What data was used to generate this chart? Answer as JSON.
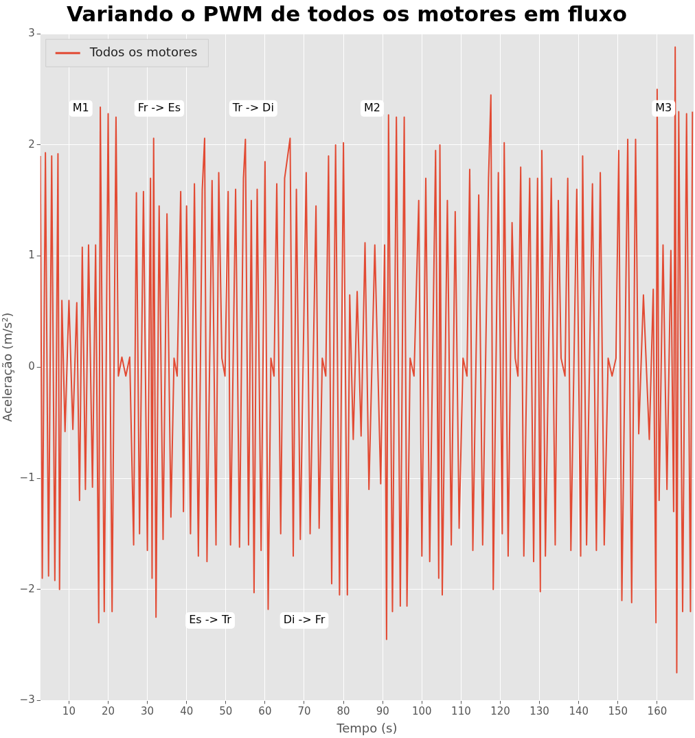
{
  "chart_data": {
    "type": "line",
    "title": "Variando o PWM de todos os motores em fluxo",
    "xlabel": "Tempo (s)",
    "ylabel": "Aceleração (m/s²)",
    "xlim": [
      2.7,
      169.3
    ],
    "ylim": [
      -3,
      3
    ],
    "xticks": [
      10,
      20,
      30,
      40,
      50,
      60,
      70,
      80,
      90,
      100,
      110,
      120,
      130,
      140,
      150,
      160
    ],
    "yticks": [
      {
        "value": -3,
        "label": "−3"
      },
      {
        "value": -2,
        "label": "−2"
      },
      {
        "value": -1,
        "label": "−1"
      },
      0,
      1,
      2,
      3
    ],
    "grid": true,
    "legend": "top left",
    "annotations": [
      "M1",
      "Fr -> Es",
      "Tr -> Di",
      "M2",
      "M3",
      "Es -> Tr",
      "Di -> Fr"
    ],
    "series": [
      {
        "name": "Todos os motores",
        "color": "#e24a33",
        "x": [
          2.7,
          3.2,
          4,
          4.8,
          5.6,
          6.4,
          7.2,
          7.6,
          8.2,
          9,
          10,
          11,
          12,
          12.7,
          13.4,
          14.2,
          15,
          16,
          16.8,
          17.6,
          18,
          19,
          20,
          21,
          22,
          22.6,
          23.5,
          24.5,
          25.5,
          26.5,
          27.2,
          28,
          29,
          30,
          30.8,
          31.2,
          31.6,
          32.2,
          33,
          34,
          35,
          36,
          36.8,
          37.6,
          38.5,
          39.2,
          40,
          41,
          42,
          43,
          44,
          44.6,
          45.2,
          46.5,
          47.5,
          48.2,
          49,
          49.8,
          50.6,
          51.2,
          52.5,
          53.5,
          54.5,
          55,
          55.8,
          56.5,
          57.2,
          58,
          59,
          60,
          60.8,
          61.5,
          62.3,
          63,
          64,
          65,
          66.4,
          67.2,
          68,
          69,
          70.5,
          71.5,
          73,
          73.8,
          74.6,
          75.5,
          76.2,
          77,
          78,
          79,
          80,
          81,
          81.6,
          82.5,
          83.5,
          84.5,
          85.5,
          86.5,
          88,
          89.5,
          90.5,
          91,
          91.5,
          92.5,
          93.5,
          94.5,
          95.5,
          96.2,
          97,
          98,
          99.2,
          100,
          101,
          102,
          103.5,
          104.3,
          104.6,
          105.2,
          106.5,
          107.5,
          108.5,
          109.5,
          110.5,
          111.5,
          112.2,
          113,
          114.5,
          115.5,
          117,
          117.6,
          118.2,
          119.5,
          120.5,
          121,
          122,
          123,
          123.8,
          124.5,
          125.2,
          126,
          127.5,
          128.5,
          129.5,
          130.2,
          130.6,
          131.5,
          133,
          134,
          134.8,
          135.5,
          136.5,
          137.2,
          138,
          139.5,
          140.5,
          141,
          142,
          143.5,
          144.5,
          145.5,
          146.5,
          147.5,
          148.5,
          149.5,
          150.2,
          151,
          152.5,
          153.5,
          154.5,
          155.3,
          156.5,
          158,
          159,
          159.7,
          160,
          160.5,
          161.5,
          162.5,
          163.5,
          164.2,
          164.6,
          165,
          165.5,
          166.5,
          167.5,
          168.5,
          169
        ],
        "values": [
          1.9,
          -1.9,
          1.93,
          -1.88,
          1.9,
          -1.92,
          1.92,
          -2.0,
          0.6,
          -0.58,
          0.6,
          -0.56,
          0.58,
          -1.2,
          1.08,
          -1.1,
          1.1,
          -1.08,
          1.1,
          -2.3,
          2.34,
          -2.2,
          2.28,
          -2.2,
          2.25,
          -0.08,
          0.09,
          -0.08,
          0.09,
          -1.6,
          1.57,
          -1.5,
          1.58,
          -1.65,
          1.7,
          -1.9,
          2.06,
          -2.25,
          1.45,
          -1.55,
          1.38,
          -1.35,
          0.08,
          -0.08,
          1.58,
          -1.3,
          1.45,
          -1.5,
          1.65,
          -1.7,
          1.6,
          2.06,
          -1.75,
          1.68,
          -1.6,
          1.75,
          0.08,
          -0.08,
          1.58,
          -1.6,
          1.6,
          -1.62,
          1.7,
          2.05,
          -1.6,
          1.5,
          -2.03,
          1.6,
          -1.65,
          1.85,
          -2.18,
          0.08,
          -0.08,
          1.65,
          -1.5,
          1.7,
          2.06,
          -1.7,
          1.6,
          -1.55,
          1.75,
          -1.5,
          1.45,
          -1.45,
          0.08,
          -0.08,
          1.9,
          -1.95,
          2.0,
          -2.05,
          2.02,
          -2.05,
          0.65,
          -0.65,
          0.68,
          -0.62,
          1.12,
          -1.1,
          1.1,
          -1.05,
          1.1,
          -2.45,
          2.27,
          -2.2,
          2.25,
          -2.15,
          2.25,
          -2.15,
          0.08,
          -0.08,
          1.5,
          -1.7,
          1.7,
          -1.75,
          1.95,
          -1.9,
          2.0,
          -2.05,
          1.5,
          -1.6,
          1.4,
          -1.45,
          0.08,
          -0.08,
          1.78,
          -1.65,
          1.55,
          -1.6,
          1.7,
          2.45,
          -2.0,
          1.75,
          -1.5,
          2.02,
          -1.7,
          1.3,
          0.08,
          -0.08,
          1.8,
          -1.7,
          1.7,
          -1.75,
          1.7,
          -2.02,
          1.95,
          -1.7,
          1.7,
          -1.6,
          1.5,
          0.08,
          -0.08,
          1.7,
          -1.65,
          1.6,
          -1.7,
          1.9,
          -1.6,
          1.65,
          -1.65,
          1.75,
          -1.6,
          0.08,
          -0.08,
          0.08,
          1.95,
          -2.1,
          2.05,
          -2.12,
          2.05,
          -0.6,
          0.65,
          -0.65,
          0.7,
          -2.3,
          2.5,
          -1.2,
          1.1,
          -1.1,
          1.05,
          -1.3,
          2.88,
          -2.75,
          2.3,
          -2.2,
          2.28,
          -2.2,
          2.3
        ]
      }
    ]
  }
}
